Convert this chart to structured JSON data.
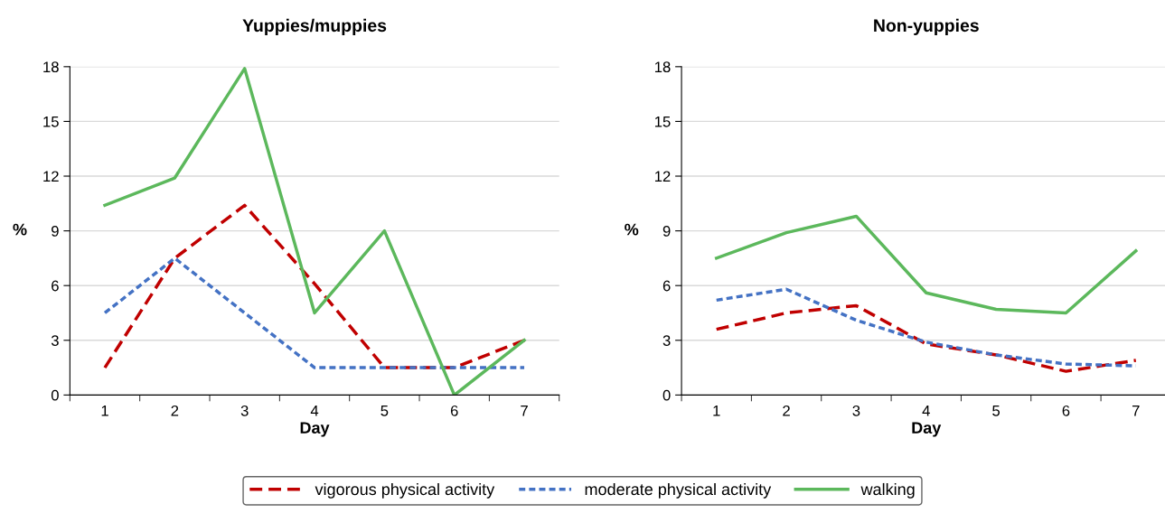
{
  "chart_data": [
    {
      "type": "line",
      "title": "Yuppies/muppies",
      "xlabel": "Day",
      "ylabel": "%",
      "categories": [
        "1",
        "2",
        "3",
        "4",
        "5",
        "6",
        "7"
      ],
      "ylim": [
        0,
        18
      ],
      "yticks": [
        0,
        3,
        6,
        9,
        12,
        15,
        18
      ],
      "grid": "y",
      "legend": "bottom",
      "marker": "none",
      "series": [
        {
          "name": "vigorous physical activity",
          "color": "#c00000",
          "line_style": "dashed",
          "values": [
            1.5,
            7.5,
            10.4,
            6.1,
            1.5,
            1.5,
            3.0
          ]
        },
        {
          "name": "moderate physical activity",
          "color": "#4472c4",
          "line_style": "dotted",
          "values": [
            4.5,
            7.5,
            4.5,
            1.5,
            1.5,
            1.5,
            1.5
          ]
        },
        {
          "name": "walking",
          "color": "#5cb85c",
          "line_style": "solid",
          "values": [
            10.4,
            11.9,
            17.9,
            4.5,
            9.0,
            0,
            3.0
          ]
        }
      ]
    },
    {
      "type": "line",
      "title": "Non-yuppies",
      "xlabel": "Day",
      "ylabel": "%",
      "categories": [
        "1",
        "2",
        "3",
        "4",
        "5",
        "6",
        "7"
      ],
      "ylim": [
        0,
        18
      ],
      "yticks": [
        0,
        3,
        6,
        9,
        12,
        15,
        18
      ],
      "grid": "y",
      "marker": "none",
      "series": [
        {
          "color": "#c00000",
          "line_style": "dashed",
          "values": [
            3.6,
            4.5,
            4.9,
            2.8,
            2.2,
            1.3,
            1.9
          ]
        },
        {
          "color": "#4472c4",
          "line_style": "dotted",
          "values": [
            5.2,
            5.8,
            4.1,
            2.9,
            2.2,
            1.7,
            1.6
          ]
        },
        {
          "color": "#5cb85c",
          "line_style": "solid",
          "values": [
            7.5,
            8.9,
            9.8,
            5.6,
            4.7,
            4.5,
            7.9
          ]
        }
      ]
    }
  ]
}
